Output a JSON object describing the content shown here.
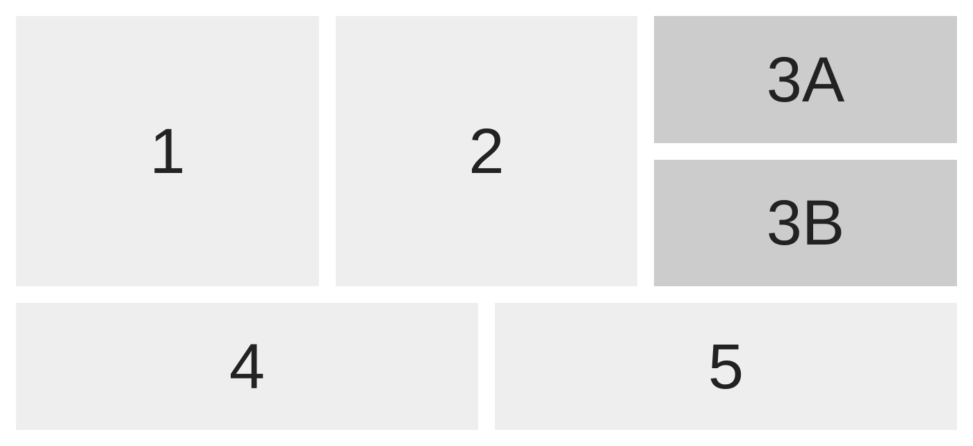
{
  "tiles": {
    "tile_1": {
      "label": "1"
    },
    "tile_2": {
      "label": "2"
    },
    "tile_3a": {
      "label": "3A"
    },
    "tile_3b": {
      "label": "3B"
    },
    "tile_4": {
      "label": "4"
    },
    "tile_5": {
      "label": "5"
    }
  },
  "colors": {
    "background": "#ffffff",
    "tile_light": "#eeeeee",
    "tile_dark": "#cccccc",
    "text": "#222222"
  }
}
